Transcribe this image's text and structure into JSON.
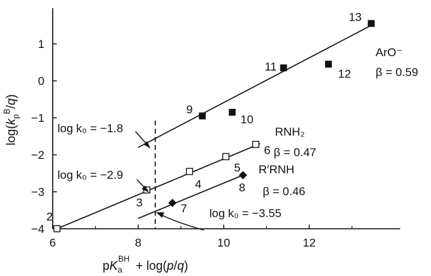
{
  "chart_data": {
    "type": "scatter",
    "title": "",
    "xlabel": "pKa^BH + log(p/q)",
    "ylabel": "log(kp^B/q)",
    "xlim": [
      6,
      14
    ],
    "ylim": [
      -4,
      1.7
    ],
    "x_ticks": [
      6,
      8,
      10,
      12
    ],
    "y_ticks": [
      -4,
      -3,
      -2,
      -1,
      0,
      1
    ],
    "grid": false,
    "series": [
      {
        "name": "ArO⁻",
        "marker": "filled-square",
        "beta": 0.59,
        "points": [
          {
            "label": "9",
            "x": 9.5,
            "y": -0.95
          },
          {
            "label": "10",
            "x": 10.2,
            "y": -0.85
          },
          {
            "label": "11",
            "x": 11.4,
            "y": 0.35
          },
          {
            "label": "12",
            "x": 12.45,
            "y": 0.45
          },
          {
            "label": "13",
            "x": 13.45,
            "y": 1.55
          }
        ],
        "fit": {
          "x": [
            8,
            13.45
          ],
          "y": [
            -1.8,
            1.5
          ]
        }
      },
      {
        "name": "RNH₂",
        "marker": "open-square",
        "beta": 0.47,
        "points": [
          {
            "label": "2",
            "x": 6.1,
            "y": -4.0
          },
          {
            "label": "3",
            "x": 8.2,
            "y": -2.95
          },
          {
            "label": "4",
            "x": 9.2,
            "y": -2.45
          },
          {
            "label": "5",
            "x": 10.05,
            "y": -2.05
          },
          {
            "label": "6",
            "x": 10.75,
            "y": -1.72
          }
        ],
        "fit": {
          "x": [
            6.1,
            10.85
          ],
          "y": [
            -4.0,
            -1.7
          ]
        }
      },
      {
        "name": "R′RNH",
        "marker": "filled-diamond",
        "beta": 0.46,
        "points": [
          {
            "label": "7",
            "x": 8.8,
            "y": -3.3
          },
          {
            "label": "8",
            "x": 10.45,
            "y": -2.55
          }
        ],
        "fit": {
          "x": [
            8,
            10.45
          ],
          "y": [
            -3.72,
            -2.55
          ]
        }
      }
    ],
    "reference_line": {
      "x": 8.4,
      "style": "dashed"
    },
    "annotations": [
      {
        "name": "logk0-aro",
        "text": "log k₀ = −1.8"
      },
      {
        "name": "logk0-rnh2",
        "text": "log k₀ = −2.9"
      },
      {
        "name": "logk0-rrnh",
        "text": "log k₀ = −3.55"
      },
      {
        "name": "series-aro",
        "text": "ArO⁻"
      },
      {
        "name": "beta-aro",
        "text": "β = 0.59"
      },
      {
        "name": "series-rnh2",
        "text": "RNH₂"
      },
      {
        "name": "beta-rnh2",
        "text": "β = 0.47"
      },
      {
        "name": "series-rrnh",
        "text": "R′RNH"
      },
      {
        "name": "beta-rrnh",
        "text": "β = 0.46"
      }
    ]
  }
}
